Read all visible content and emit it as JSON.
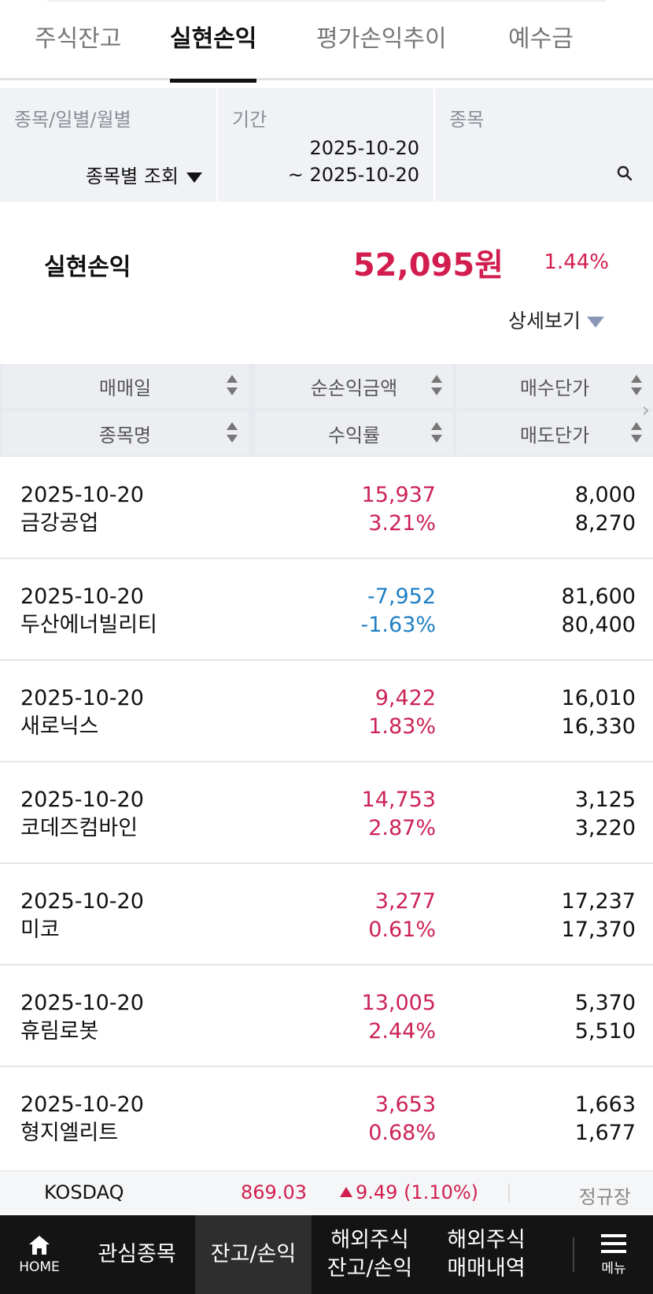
{
  "tabs": [
    {
      "label": "주식잔고"
    },
    {
      "label": "실현손익"
    },
    {
      "label": "평가손익추이"
    },
    {
      "label": "예수금"
    }
  ],
  "filters": {
    "mode_label": "종목/일별/월별",
    "mode_value": "종목별 조회",
    "period_label": "기간",
    "period_start": "2025-10-20",
    "period_end": "~ 2025-10-20",
    "stock_label": "종목"
  },
  "summary": {
    "label": "실현손익",
    "amount": "52,095원",
    "rate": "1.44%",
    "detail_label": "상세보기"
  },
  "table_header": {
    "col1_top": "매매일",
    "col1_bottom": "종목명",
    "col2_top": "순손익금액",
    "col2_bottom": "수익률",
    "col3_top": "매수단가",
    "col3_bottom": "매도단가"
  },
  "rows": [
    {
      "date": "2025-10-20",
      "name": "금강공업",
      "profit": "15,937",
      "rate": "3.21%",
      "buy": "8,000",
      "sell": "8,270",
      "sign": "pos"
    },
    {
      "date": "2025-10-20",
      "name": "두산에너빌리티",
      "profit": "-7,952",
      "rate": "-1.63%",
      "buy": "81,600",
      "sell": "80,400",
      "sign": "neg"
    },
    {
      "date": "2025-10-20",
      "name": "새로닉스",
      "profit": "9,422",
      "rate": "1.83%",
      "buy": "16,010",
      "sell": "16,330",
      "sign": "pos"
    },
    {
      "date": "2025-10-20",
      "name": "코데즈컴바인",
      "profit": "14,753",
      "rate": "2.87%",
      "buy": "3,125",
      "sell": "3,220",
      "sign": "pos"
    },
    {
      "date": "2025-10-20",
      "name": "미코",
      "profit": "3,277",
      "rate": "0.61%",
      "buy": "17,237",
      "sell": "17,370",
      "sign": "pos"
    },
    {
      "date": "2025-10-20",
      "name": "휴림로봇",
      "profit": "13,005",
      "rate": "2.44%",
      "buy": "5,370",
      "sell": "5,510",
      "sign": "pos"
    },
    {
      "date": "2025-10-20",
      "name": "형지엘리트",
      "profit": "3,653",
      "rate": "0.68%",
      "buy": "1,663",
      "sell": "1,677",
      "sign": "pos"
    }
  ],
  "ticker": {
    "index_name": "KOSDAQ",
    "index_value": "869.03",
    "change": "9.49 (1.10%)",
    "session": "정규장"
  },
  "bottom_nav": {
    "home": "HOME",
    "watchlist": "관심종목",
    "balance": "잔고/손익",
    "overseas_balance_1": "해외주식",
    "overseas_balance_2": "잔고/손익",
    "overseas_trades_1": "해외주식",
    "overseas_trades_2": "매매내역",
    "menu": "메뉴"
  },
  "colors": {
    "positive": "#cc2356",
    "negative": "#1f7fc4",
    "accent": "#d21e4e"
  }
}
